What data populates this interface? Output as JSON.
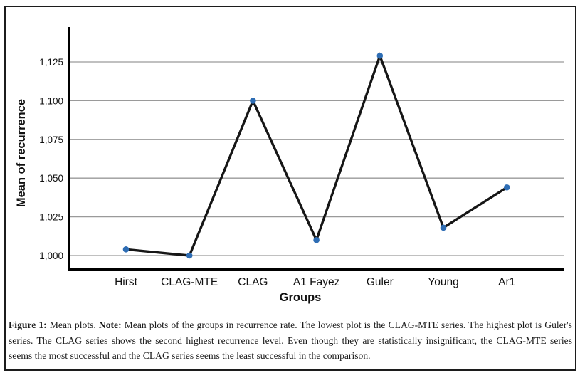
{
  "chart_data": {
    "type": "line",
    "title": "",
    "xlabel": "Groups",
    "ylabel": "Mean of recurrence",
    "categories": [
      "Hirst",
      "CLAG-MTE",
      "CLAG",
      "A1 Fayez",
      "Guler",
      "Young",
      "Ar1"
    ],
    "series": [
      {
        "name": "Mean of recurrence",
        "values": [
          1004,
          1000,
          1100,
          1010,
          1129,
          1018,
          1044
        ]
      }
    ],
    "y_ticks": [
      {
        "value": 1000,
        "label": "1,000"
      },
      {
        "value": 1025,
        "label": "1,025"
      },
      {
        "value": 1050,
        "label": "1,050"
      },
      {
        "value": 1075,
        "label": "1,075"
      },
      {
        "value": 1100,
        "label": "1,100"
      },
      {
        "value": 1125,
        "label": "1,125"
      }
    ],
    "ylim": [
      990,
      1147
    ],
    "grid": "horizontal",
    "legend": "none",
    "colors": {
      "line": "#161616",
      "marker": "#2e6db4",
      "gridline": "#9a9a9a",
      "axis": "#000000"
    }
  },
  "caption": {
    "figure_label": "Figure 1: ",
    "intro": "Mean plots. ",
    "note_label": "Note: ",
    "note_text": "Mean plots of the groups in recurrence rate. The lowest plot is the CLAG-MTE series. The highest plot is Guler's series. The CLAG series shows the second highest recurrence level. Even though they are statistically insignificant, the CLAG-MTE series seems the most successful and the CLAG series seems the least successful in the comparison."
  }
}
